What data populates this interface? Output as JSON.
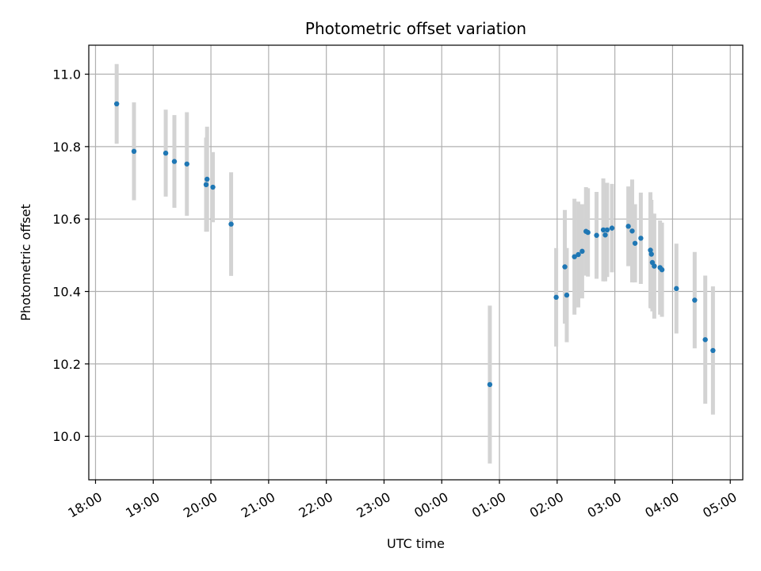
{
  "chart_data": {
    "type": "scatter",
    "title": "Photometric offset variation",
    "xlabel": "UTC time",
    "ylabel": "Photometric offset",
    "xlim": [
      "17:53",
      "05:13"
    ],
    "ylim": [
      9.88,
      11.08
    ],
    "x_ticks": [
      "18:00",
      "19:00",
      "20:00",
      "21:00",
      "22:00",
      "23:00",
      "00:00",
      "01:00",
      "02:00",
      "03:00",
      "04:00",
      "05:00"
    ],
    "y_ticks": [
      10.0,
      10.2,
      10.4,
      10.6,
      10.8,
      11.0
    ],
    "y_tick_labels": [
      "10.0",
      "10.2",
      "10.4",
      "10.6",
      "10.8",
      "11.0"
    ],
    "grid": true,
    "point_color": "#1f77b4",
    "errorbar_color": "#d3d3d3",
    "points": [
      {
        "x": "18:22",
        "y": 10.918,
        "err": 0.11
      },
      {
        "x": "18:40",
        "y": 10.787,
        "err": 0.135
      },
      {
        "x": "19:13",
        "y": 10.782,
        "err": 0.12
      },
      {
        "x": "19:22",
        "y": 10.759,
        "err": 0.128
      },
      {
        "x": "19:35",
        "y": 10.752,
        "err": 0.143
      },
      {
        "x": "19:55",
        "y": 10.695,
        "err": 0.13
      },
      {
        "x": "19:56",
        "y": 10.71,
        "err": 0.145
      },
      {
        "x": "20:02",
        "y": 10.688,
        "err": 0.097
      },
      {
        "x": "20:21",
        "y": 10.586,
        "err": 0.143
      },
      {
        "x": "00:50",
        "y": 10.143,
        "err": 0.218
      },
      {
        "x": "01:59",
        "y": 10.384,
        "err": 0.136
      },
      {
        "x": "02:08",
        "y": 10.468,
        "err": 0.157
      },
      {
        "x": "02:10",
        "y": 10.39,
        "err": 0.13
      },
      {
        "x": "02:18",
        "y": 10.496,
        "err": 0.16
      },
      {
        "x": "02:22",
        "y": 10.502,
        "err": 0.146
      },
      {
        "x": "02:26",
        "y": 10.511,
        "err": 0.13
      },
      {
        "x": "02:30",
        "y": 10.566,
        "err": 0.122
      },
      {
        "x": "02:32",
        "y": 10.563,
        "err": 0.122
      },
      {
        "x": "02:41",
        "y": 10.555,
        "err": 0.12
      },
      {
        "x": "02:48",
        "y": 10.57,
        "err": 0.142
      },
      {
        "x": "02:50",
        "y": 10.556,
        "err": 0.128
      },
      {
        "x": "02:52",
        "y": 10.57,
        "err": 0.13
      },
      {
        "x": "02:57",
        "y": 10.575,
        "err": 0.122
      },
      {
        "x": "03:14",
        "y": 10.58,
        "err": 0.11
      },
      {
        "x": "03:18",
        "y": 10.567,
        "err": 0.142
      },
      {
        "x": "03:21",
        "y": 10.533,
        "err": 0.108
      },
      {
        "x": "03:27",
        "y": 10.547,
        "err": 0.126
      },
      {
        "x": "03:37",
        "y": 10.514,
        "err": 0.16
      },
      {
        "x": "03:38",
        "y": 10.503,
        "err": 0.15
      },
      {
        "x": "03:39",
        "y": 10.48,
        "err": 0.135
      },
      {
        "x": "03:41",
        "y": 10.47,
        "err": 0.145
      },
      {
        "x": "03:47",
        "y": 10.466,
        "err": 0.13
      },
      {
        "x": "03:49",
        "y": 10.46,
        "err": 0.13
      },
      {
        "x": "04:04",
        "y": 10.408,
        "err": 0.124
      },
      {
        "x": "04:23",
        "y": 10.376,
        "err": 0.133
      },
      {
        "x": "04:34",
        "y": 10.267,
        "err": 0.177
      },
      {
        "x": "04:42",
        "y": 10.237,
        "err": 0.177
      }
    ]
  }
}
